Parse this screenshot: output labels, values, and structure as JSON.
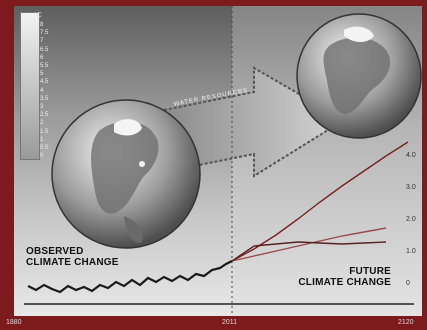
{
  "labels": {
    "observed_line1": "OBSERVED",
    "observed_line2": "CLIMATE CHANGE",
    "future_line1": "FUTURE",
    "future_line2": "CLIMATE CHANGE",
    "arrow_text": "WATER RESOURCES"
  },
  "scale": {
    "unit": "°C",
    "ticks": [
      "8",
      "7.5",
      "7",
      "6.5",
      "6",
      "5.5",
      "5",
      "4.5",
      "4",
      "3.5",
      "3",
      "2.5",
      "2",
      "1.5",
      "1",
      "0.5",
      "0"
    ]
  },
  "x_axis": {
    "years": [
      "1880",
      "2011",
      "2120"
    ]
  },
  "y_axis": {
    "ticks": [
      "4.0",
      "3.0",
      "2.0",
      "1.0",
      "0"
    ]
  },
  "colors": {
    "frame": "#7d1a1c",
    "observed_line": "#1a1a1a",
    "projection_high": "#7a1f1f",
    "projection_mid": "#9a4a4a",
    "projection_low": "#5a2020"
  }
}
